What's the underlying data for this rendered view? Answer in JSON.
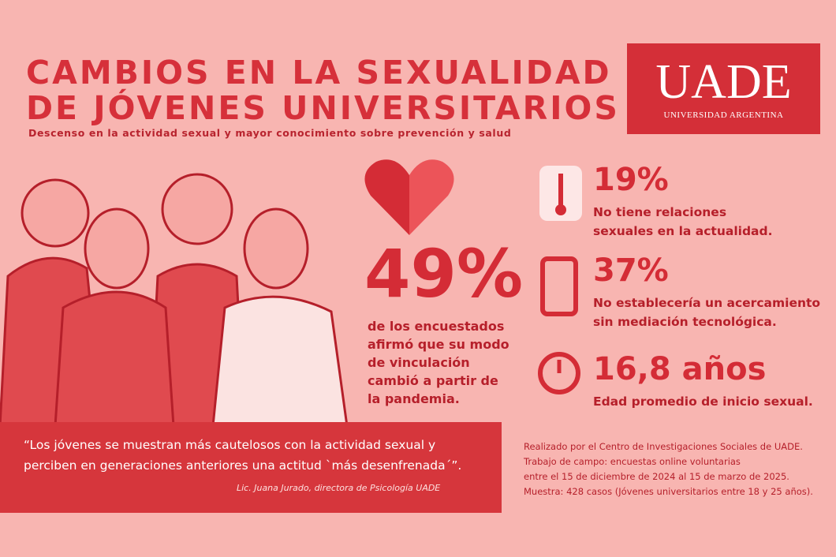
{
  "header": {
    "title_lines": [
      "CAMBIOS EN LA SEXUALIDAD",
      "DE JÓVENES UNIVERSITARIOS"
    ],
    "subtitle": "Descenso en la actividad sexual y mayor conocimiento sobre prevención y salud"
  },
  "logo": {
    "name": "UADE",
    "subtitle": "UNIVERSIDAD ARGENTINA"
  },
  "main_stat": {
    "value": "49%",
    "lines": [
      "de los encuestados",
      "afirmó que su modo",
      "de vinculación",
      "cambió a partir de",
      "la pandemia."
    ]
  },
  "stats": [
    {
      "value": "19%",
      "lines": [
        "No tiene relaciones",
        "sexuales en la actualidad."
      ]
    },
    {
      "value": "37%",
      "lines": [
        "No establecería un acercamiento",
        "sin mediación tecnológica."
      ]
    },
    {
      "value": "16,8 años",
      "lines": [
        "Edad promedio de inicio sexual."
      ]
    }
  ],
  "quote": {
    "lines": [
      "“Los jóvenes se muestran más cautelosos con la actividad sexual y",
      "perciben en generaciones anteriores una actitud `más desenfrenada´”."
    ],
    "author": "Lic. Juana Jurado, directora de Psicología UADE"
  },
  "source": {
    "lines": [
      "Realizado por el Centro de Investigaciones Sociales de UADE.",
      "Trabajo de campo: encuestas online voluntarias",
      "entre el 15 de diciembre de 2024 al 15 de marzo de 2025.",
      "Muestra: 428 casos (Jóvenes universitarios entre 18 y 25 años)."
    ]
  }
}
